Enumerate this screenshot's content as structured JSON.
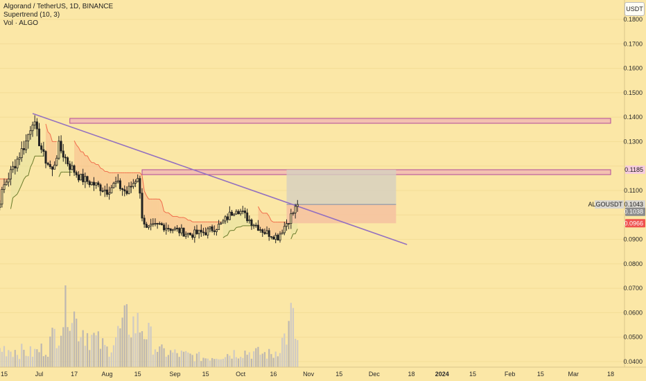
{
  "legend": {
    "symbol": "Algorand / TetherUS, 1D, BINANCE",
    "indicator1": "Supertrend (10, 3)",
    "indicator2": "Vol · ALGO"
  },
  "currency_button": "USDT",
  "colors": {
    "background": "#fbe7a6",
    "candle": "#222222",
    "supertrend_down": "#f06c4a",
    "supertrend_up": "#6a7a2a",
    "supertrend_down_fill": "#f7b98a",
    "supertrend_up_fill": "#e6e3a0",
    "trendline": "#9370c0",
    "zone_fill": "#f3c1b0",
    "zone_border": "#b24a9a",
    "volume": "#c8c4c0",
    "position_profit": "#d6d0c0",
    "position_loss": "#f5bfa0"
  },
  "price_labels": {
    "resistance": "0.1185",
    "symbol_tag": "ALGOUSDT",
    "last_price": "0.1043",
    "marker_price": "0.1038",
    "stop_price": "0.0966"
  },
  "chart_data": {
    "type": "candlestick",
    "title": "Algorand / TetherUS, 1D, BINANCE",
    "ylim": [
      0.0375,
      0.186
    ],
    "y_ticks": [
      0.04,
      0.05,
      0.06,
      0.07,
      0.08,
      0.09,
      0.1,
      0.11,
      0.12,
      0.13,
      0.14,
      0.15,
      0.16,
      0.17,
      0.18
    ],
    "y_tick_labels": [
      "0.0400",
      "0.0500",
      "0.0600",
      "0.0700",
      "0.0800",
      "0.0900",
      "",
      "0.1100",
      "",
      "0.1300",
      "0.1400",
      "0.1500",
      "0.1600",
      "0.1700",
      "0.1800"
    ],
    "x_ticks": [
      {
        "label": "15",
        "date": "2023-06-15"
      },
      {
        "label": "Jul",
        "date": "2023-07-01"
      },
      {
        "label": "17",
        "date": "2023-07-17"
      },
      {
        "label": "Aug",
        "date": "2023-08-01"
      },
      {
        "label": "15",
        "date": "2023-08-15"
      },
      {
        "label": "Sep",
        "date": "2023-09-01"
      },
      {
        "label": "15",
        "date": "2023-09-15"
      },
      {
        "label": "Oct",
        "date": "2023-10-01"
      },
      {
        "label": "16",
        "date": "2023-10-16"
      },
      {
        "label": "Nov",
        "date": "2023-11-01"
      },
      {
        "label": "15",
        "date": "2023-11-15"
      },
      {
        "label": "Dec",
        "date": "2023-12-01"
      },
      {
        "label": "18",
        "date": "2023-12-18"
      },
      {
        "label": "2024",
        "date": "2024-01-01"
      },
      {
        "label": "15",
        "date": "2024-01-15"
      },
      {
        "label": "Feb",
        "date": "2024-02-01"
      },
      {
        "label": "15",
        "date": "2024-02-15"
      },
      {
        "label": "Mar",
        "date": "2024-03-01"
      },
      {
        "label": "18",
        "date": "2024-03-18"
      }
    ],
    "price_anchors": [
      {
        "date": "2023-06-07",
        "value": 0.118
      },
      {
        "date": "2023-06-10",
        "value": 0.097
      },
      {
        "date": "2023-06-15",
        "value": 0.112
      },
      {
        "date": "2023-06-20",
        "value": 0.121
      },
      {
        "date": "2023-06-25",
        "value": 0.13
      },
      {
        "date": "2023-06-28",
        "value": 0.139
      },
      {
        "date": "2023-07-03",
        "value": 0.124
      },
      {
        "date": "2023-07-07",
        "value": 0.118
      },
      {
        "date": "2023-07-10",
        "value": 0.128
      },
      {
        "date": "2023-07-15",
        "value": 0.12
      },
      {
        "date": "2023-07-20",
        "value": 0.115
      },
      {
        "date": "2023-07-25",
        "value": 0.113
      },
      {
        "date": "2023-08-01",
        "value": 0.11
      },
      {
        "date": "2023-08-05",
        "value": 0.113
      },
      {
        "date": "2023-08-10",
        "value": 0.109
      },
      {
        "date": "2023-08-15",
        "value": 0.116
      },
      {
        "date": "2023-08-17",
        "value": 0.1
      },
      {
        "date": "2023-08-19",
        "value": 0.094
      },
      {
        "date": "2023-08-25",
        "value": 0.096
      },
      {
        "date": "2023-09-01",
        "value": 0.094
      },
      {
        "date": "2023-09-08",
        "value": 0.092
      },
      {
        "date": "2023-09-15",
        "value": 0.093
      },
      {
        "date": "2023-09-22",
        "value": 0.096
      },
      {
        "date": "2023-09-29",
        "value": 0.103
      },
      {
        "date": "2023-10-05",
        "value": 0.098
      },
      {
        "date": "2023-10-12",
        "value": 0.093
      },
      {
        "date": "2023-10-18",
        "value": 0.091
      },
      {
        "date": "2023-10-20",
        "value": 0.094
      },
      {
        "date": "2023-10-25",
        "value": 0.101
      },
      {
        "date": "2023-10-27",
        "value": 0.1043
      }
    ],
    "volume_anchors": [
      {
        "date": "2023-06-07",
        "value": 0.9
      },
      {
        "date": "2023-06-15",
        "value": 1.2
      },
      {
        "date": "2023-06-28",
        "value": 0.9
      },
      {
        "date": "2023-07-05",
        "value": 1.3
      },
      {
        "date": "2023-07-13",
        "value": 3.5
      },
      {
        "date": "2023-07-14",
        "value": 5.0
      },
      {
        "date": "2023-07-18",
        "value": 2.8
      },
      {
        "date": "2023-08-01",
        "value": 1.1
      },
      {
        "date": "2023-08-10",
        "value": 2.9
      },
      {
        "date": "2023-08-17",
        "value": 2.6
      },
      {
        "date": "2023-08-25",
        "value": 1.0
      },
      {
        "date": "2023-09-15",
        "value": 0.6
      },
      {
        "date": "2023-10-01",
        "value": 1.0
      },
      {
        "date": "2023-10-16",
        "value": 0.8
      },
      {
        "date": "2023-10-23",
        "value": 2.3
      },
      {
        "date": "2023-10-24",
        "value": 3.4
      },
      {
        "date": "2023-10-27",
        "value": 1.5
      }
    ],
    "trendline": {
      "from": {
        "date": "2023-06-28",
        "value": 0.1415
      },
      "to": {
        "date": "2023-12-16",
        "value": 0.0879
      }
    },
    "zones": [
      {
        "from": "2023-07-15",
        "to": "2024-03-18",
        "low": 0.1375,
        "high": 0.1395
      },
      {
        "from": "2023-08-17",
        "to": "2024-03-18",
        "low": 0.1165,
        "high": 0.1185
      }
    ],
    "long_position": {
      "from": "2023-10-22",
      "to": "2023-12-11",
      "entry": 0.1043,
      "target": 0.1185,
      "stop": 0.0966
    }
  }
}
